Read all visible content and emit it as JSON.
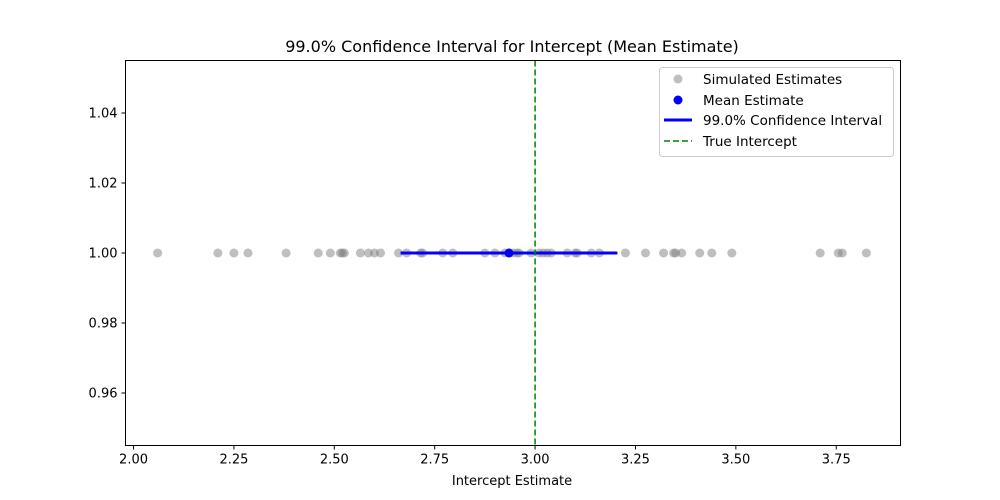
{
  "chart_data": {
    "type": "scatter",
    "title": "99.0% Confidence Interval for Intercept (Mean Estimate)",
    "xlabel": "Intercept Estimate",
    "ylabel": "",
    "xlim": [
      1.98,
      3.91
    ],
    "ylim": [
      0.945,
      1.055
    ],
    "xticks": [
      "2.00",
      "2.25",
      "2.50",
      "2.75",
      "3.00",
      "3.25",
      "3.50",
      "3.75"
    ],
    "yticks": [
      "0.96",
      "0.98",
      "1.00",
      "1.02",
      "1.04"
    ],
    "grid": false,
    "legend_position": "upper-right",
    "series": [
      {
        "name": "Simulated Estimates",
        "kind": "scatter",
        "color": "#808080",
        "y": 1.0,
        "x": [
          2.06,
          2.21,
          2.25,
          2.285,
          2.38,
          2.46,
          2.49,
          2.515,
          2.52,
          2.525,
          2.565,
          2.585,
          2.6,
          2.615,
          2.66,
          2.68,
          2.715,
          2.72,
          2.77,
          2.795,
          2.875,
          2.9,
          2.925,
          2.945,
          2.955,
          2.96,
          2.99,
          3.01,
          3.02,
          3.03,
          3.04,
          3.08,
          3.1,
          3.105,
          3.14,
          3.16,
          3.225,
          3.275,
          3.32,
          3.345,
          3.35,
          3.365,
          3.41,
          3.44,
          3.49,
          3.71,
          3.755,
          3.765,
          3.825
        ]
      },
      {
        "name": "Mean Estimate",
        "kind": "point",
        "color": "#0000ff",
        "x": 2.935,
        "y": 1.0
      },
      {
        "name": "99.0% Confidence Interval",
        "kind": "interval",
        "color": "#0000ff",
        "x_low": 2.665,
        "x_high": 3.205,
        "y": 1.0
      },
      {
        "name": "True Intercept",
        "kind": "vline",
        "color": "#008000",
        "x": 3.0
      }
    ]
  }
}
